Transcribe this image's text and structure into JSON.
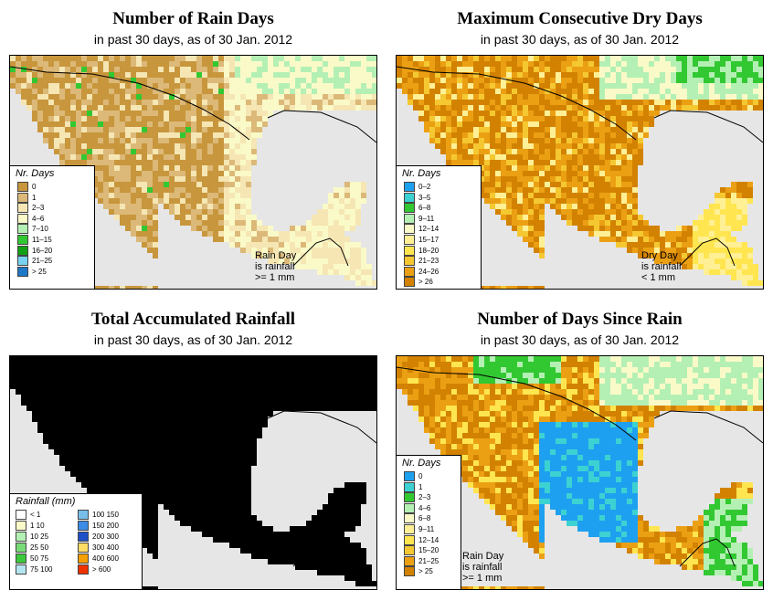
{
  "colors": {
    "ocean": "#e6e6e6",
    "border": "#000000"
  },
  "panels": [
    {
      "title": "Number of Rain Days",
      "subtitle": "in past 30 days, as of  30 Jan. 2012",
      "legend_title": "Nr. Days",
      "note": [
        "Rain Day",
        "is rainfall",
        ">= 1 mm"
      ],
      "legend": [
        {
          "label": "0",
          "color": "#c8963c"
        },
        {
          "label": "1",
          "color": "#dcb978"
        },
        {
          "label": "2–3",
          "color": "#f5e6b4"
        },
        {
          "label": "4–6",
          "color": "#fafac8"
        },
        {
          "label": "7–10",
          "color": "#b4f0b4"
        },
        {
          "label": "11–15",
          "color": "#32c832"
        },
        {
          "label": "16–20",
          "color": "#14a014"
        },
        {
          "label": "21–25",
          "color": "#78d2f0"
        },
        {
          "label": "> 25",
          "color": "#1e78c8"
        }
      ]
    },
    {
      "title": "Maximum Consecutive Dry Days",
      "subtitle": "in past 30 days, as of  30 Jan. 2012",
      "legend_title": "Nr. Days",
      "note": [
        "Dry Day",
        "is rainfall",
        "< 1 mm"
      ],
      "legend": [
        {
          "label": "0–2",
          "color": "#1ea0f0"
        },
        {
          "label": "3–5",
          "color": "#3cd2d2"
        },
        {
          "label": "6–8",
          "color": "#32c832"
        },
        {
          "label": "9–11",
          "color": "#b4f0b4"
        },
        {
          "label": "12–14",
          "color": "#fafac8"
        },
        {
          "label": "15–17",
          "color": "#fff096"
        },
        {
          "label": "18–20",
          "color": "#ffe650"
        },
        {
          "label": "21–23",
          "color": "#f5c832"
        },
        {
          "label": "24–26",
          "color": "#eba014"
        },
        {
          "label": "> 26",
          "color": "#d28200"
        }
      ]
    },
    {
      "title": "Total Accumulated Rainfall",
      "subtitle": "in past 30 days, as of  30 Jan. 2012",
      "legend_title": "Rainfall (mm)",
      "note": [],
      "legend_cols": [
        [
          {
            "label": "< 1",
            "color": "#ffffff"
          },
          {
            "label": "1    10",
            "color": "#fafac8"
          },
          {
            "label": "10   25",
            "color": "#b4f0b4"
          },
          {
            "label": "25   50",
            "color": "#78dc78"
          },
          {
            "label": "50   75",
            "color": "#3cc83c"
          },
          {
            "label": "75   100",
            "color": "#b4e6f0"
          }
        ],
        [
          {
            "label": "100   150",
            "color": "#78beeb"
          },
          {
            "label": "150   200",
            "color": "#3c8ce6"
          },
          {
            "label": "200   300",
            "color": "#1e50c8"
          },
          {
            "label": "300   400",
            "color": "#ffdc64"
          },
          {
            "label": "400   600",
            "color": "#f5a000"
          },
          {
            "label": "> 600",
            "color": "#f03200"
          }
        ]
      ]
    },
    {
      "title": "Number of Days Since Rain",
      "subtitle": "in past 30 days, as of  30 Jan. 2012",
      "legend_title": "Nr. Days",
      "note": [
        "Rain Day",
        "is rainfall",
        ">= 1 mm"
      ],
      "legend": [
        {
          "label": "0",
          "color": "#1ea0f0"
        },
        {
          "label": "1",
          "color": "#3cd2d2"
        },
        {
          "label": "2–3",
          "color": "#32c832"
        },
        {
          "label": "4–6",
          "color": "#b4f0b4"
        },
        {
          "label": "6–8",
          "color": "#fafac8"
        },
        {
          "label": "9–11",
          "color": "#fff096"
        },
        {
          "label": "12–14",
          "color": "#ffe650"
        },
        {
          "label": "15–20",
          "color": "#f5c832"
        },
        {
          "label": "21–25",
          "color": "#eba014"
        },
        {
          "label": "> 25",
          "color": "#d28200"
        }
      ]
    }
  ]
}
